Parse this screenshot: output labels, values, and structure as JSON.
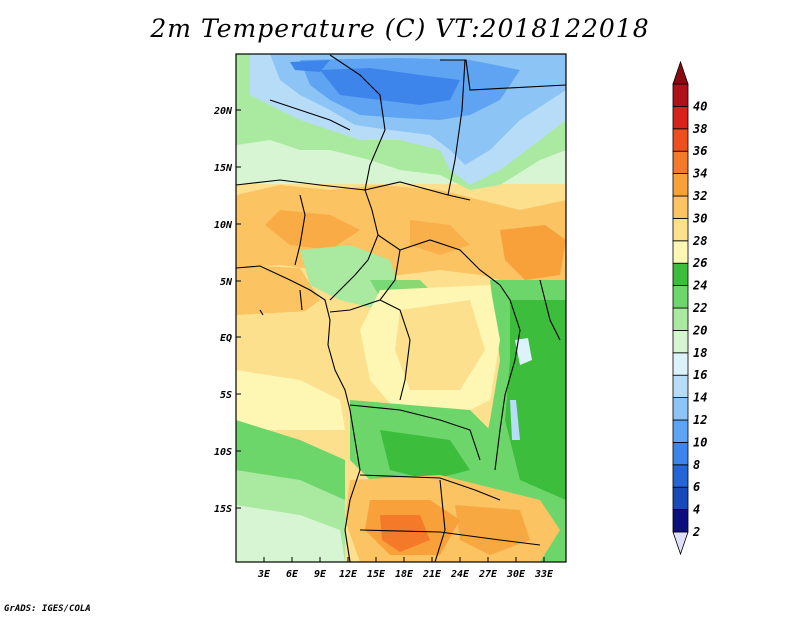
{
  "title": "2m Temperature (C) VT:2018122018",
  "credit": "GrADS: IGES/COLA",
  "map": {
    "lat_labels": [
      "20N",
      "15N",
      "10N",
      "5N",
      "EQ",
      "5S",
      "10S",
      "15S"
    ],
    "lon_labels": [
      "3E",
      "6E",
      "9E",
      "12E",
      "15E",
      "18E",
      "21E",
      "24E",
      "27E",
      "30E",
      "33E"
    ]
  },
  "colorbar": {
    "labels": [
      "2",
      "4",
      "6",
      "8",
      "10",
      "12",
      "14",
      "16",
      "18",
      "20",
      "22",
      "24",
      "26",
      "28",
      "30",
      "32",
      "34",
      "36",
      "38",
      "40"
    ],
    "colors": [
      "#e1e0fb",
      "#0c0f7c",
      "#1a49b8",
      "#2466d6",
      "#3d85ea",
      "#5ea4f2",
      "#8cc4f6",
      "#b7dcf8",
      "#dcf3fb",
      "#d7f5d3",
      "#a9e9a0",
      "#6dd66a",
      "#3cbd3c",
      "#fdf7b3",
      "#fde08e",
      "#fbc362",
      "#f8a13a",
      "#f47a2a",
      "#ee4f1e",
      "#d8221a",
      "#b0101a",
      "#8a0a10"
    ]
  }
}
